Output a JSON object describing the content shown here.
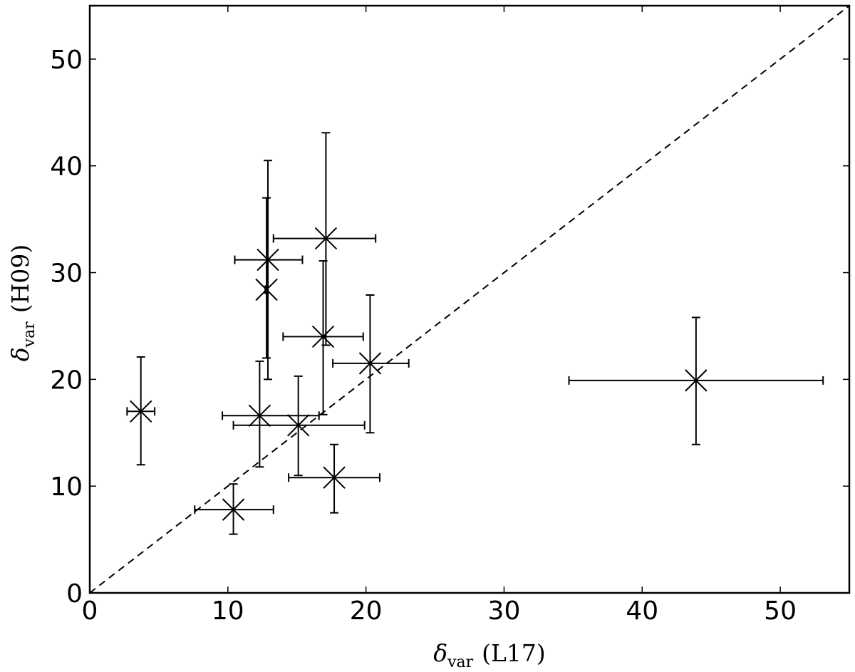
{
  "chart_data": {
    "type": "scatter",
    "xlabel": {
      "symbol": "δ",
      "subscript": "var",
      "text": "(L17)"
    },
    "ylabel": {
      "symbol": "δ",
      "subscript": "var",
      "text": "(H09)"
    },
    "xlim": [
      0,
      55
    ],
    "ylim": [
      0,
      55
    ],
    "xticks": [
      0,
      10,
      20,
      30,
      40,
      50
    ],
    "yticks": [
      0,
      10,
      20,
      30,
      40,
      50
    ],
    "grid": false,
    "reference_line": {
      "style": "dashed",
      "from": [
        0,
        0
      ],
      "to": [
        55,
        55
      ]
    },
    "points": [
      {
        "x": 3.7,
        "y": 17.0,
        "xerr": [
          2.7,
          4.7
        ],
        "yerr": [
          12.0,
          22.1
        ]
      },
      {
        "x": 10.4,
        "y": 7.8,
        "xerr": [
          7.6,
          13.3
        ],
        "yerr": [
          5.5,
          10.2
        ]
      },
      {
        "x": 12.3,
        "y": 16.6,
        "xerr": [
          9.6,
          16.6
        ],
        "yerr": [
          11.8,
          21.7
        ]
      },
      {
        "x": 12.8,
        "y": 28.4,
        "xerr": [
          12.7,
          12.9
        ],
        "yerr": [
          22.0,
          37.0
        ]
      },
      {
        "x": 12.9,
        "y": 31.2,
        "xerr": [
          10.5,
          15.4
        ],
        "yerr": [
          20.0,
          40.5
        ]
      },
      {
        "x": 15.1,
        "y": 15.7,
        "xerr": [
          10.4,
          19.9
        ],
        "yerr": [
          11.0,
          20.3
        ]
      },
      {
        "x": 16.9,
        "y": 24.0,
        "xerr": [
          14.0,
          19.8
        ],
        "yerr": [
          16.7,
          31.1
        ]
      },
      {
        "x": 17.1,
        "y": 33.2,
        "xerr": [
          13.3,
          20.7
        ],
        "yerr": [
          23.2,
          43.1
        ]
      },
      {
        "x": 17.7,
        "y": 10.8,
        "xerr": [
          14.4,
          21.0
        ],
        "yerr": [
          7.5,
          13.9
        ]
      },
      {
        "x": 20.3,
        "y": 21.5,
        "xerr": [
          17.6,
          23.1
        ],
        "yerr": [
          15.0,
          27.9
        ]
      },
      {
        "x": 43.9,
        "y": 19.9,
        "xerr": [
          34.7,
          53.1
        ],
        "yerr": [
          13.9,
          25.8
        ]
      }
    ]
  }
}
